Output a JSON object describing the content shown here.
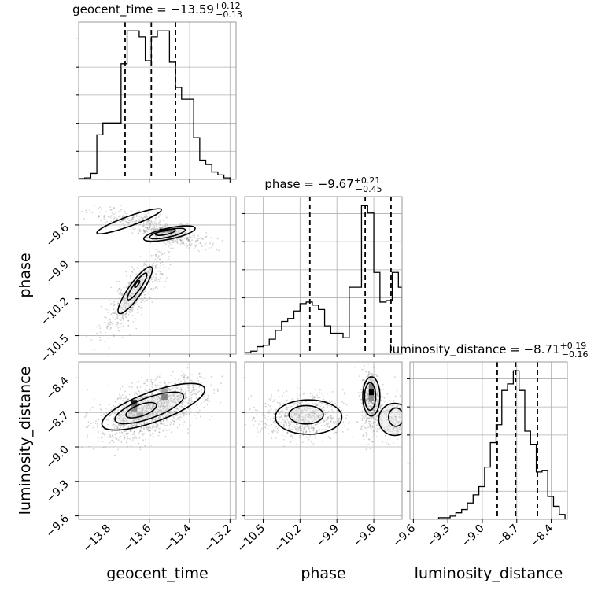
{
  "chart_data": {
    "type": "corner",
    "parameters": [
      {
        "name": "geocent_time",
        "axis_label": "geocent_time",
        "title_prefix": "geocent_time = ",
        "title_value": "−13.59",
        "title_sup": "+0.12",
        "title_sub": "−0.13",
        "median": -13.59,
        "q16": -13.72,
        "q84": -13.47,
        "range": [
          -13.95,
          -13.17
        ],
        "ticks": [
          -13.8,
          -13.6,
          -13.4,
          -13.2
        ],
        "tick_labels": [
          "−13.8",
          "−13.6",
          "−13.4",
          "−13.2"
        ]
      },
      {
        "name": "phase",
        "axis_label": "phase",
        "title_prefix": "phase = ",
        "title_value": "−9.67",
        "title_sup": "+0.21",
        "title_sub": "−0.45",
        "median": -9.67,
        "q16": -10.12,
        "q84": -9.46,
        "range": [
          -10.65,
          -9.37
        ],
        "ticks": [
          -10.5,
          -10.2,
          -9.9,
          -9.6
        ],
        "tick_labels": [
          "−10.5",
          "−10.2",
          "−9.9",
          "−9.6"
        ]
      },
      {
        "name": "luminosity_distance",
        "axis_label": "luminosity_distance",
        "title_prefix": "luminosity_distance = ",
        "title_value": "−8.71",
        "title_sup": "+0.19",
        "title_sub": "−0.16",
        "median": -8.71,
        "q16": -8.87,
        "q84": -8.52,
        "range": [
          -9.63,
          -8.26
        ],
        "ticks": [
          -9.6,
          -9.3,
          -9.0,
          -8.7,
          -8.4
        ],
        "tick_labels": [
          "−9.6",
          "−9.3",
          "−9.0",
          "−8.7",
          "−8.4"
        ]
      }
    ],
    "histograms": [
      {
        "param": 0,
        "edges": [
          -13.95,
          -13.92,
          -13.89,
          -13.86,
          -13.83,
          -13.8,
          -13.77,
          -13.74,
          -13.71,
          -13.68,
          -13.65,
          -13.62,
          -13.59,
          -13.56,
          -13.53,
          -13.5,
          -13.47,
          -13.44,
          -13.41,
          -13.38,
          -13.35,
          -13.32,
          -13.29,
          -13.26,
          -13.23,
          -13.2
        ],
        "counts": [
          0.5,
          1,
          4,
          30,
          38,
          38,
          38,
          78,
          100,
          100,
          96,
          80,
          96,
          100,
          100,
          79,
          62,
          54,
          54,
          28,
          13,
          10,
          5,
          3,
          1
        ]
      },
      {
        "param": 1,
        "edges": [
          -10.65,
          -10.6,
          -10.55,
          -10.5,
          -10.45,
          -10.4,
          -10.35,
          -10.3,
          -10.25,
          -10.2,
          -10.15,
          -10.1,
          -10.05,
          -10.0,
          -9.95,
          -9.9,
          -9.85,
          -9.8,
          -9.75,
          -9.7,
          -9.65,
          -9.6,
          -9.55,
          -9.5,
          -9.45,
          -9.4,
          -9.37
        ],
        "counts": [
          1,
          2,
          5,
          6,
          10,
          16,
          22,
          24,
          29,
          34,
          35,
          33,
          30,
          19,
          14,
          14,
          11,
          45,
          45,
          100,
          95,
          55,
          35,
          36,
          55,
          45
        ]
      },
      {
        "param": 2,
        "edges": [
          -9.63,
          -9.58,
          -9.53,
          -9.48,
          -9.43,
          -9.38,
          -9.33,
          -9.28,
          -9.23,
          -9.18,
          -9.13,
          -9.08,
          -9.03,
          -8.98,
          -8.93,
          -8.88,
          -8.83,
          -8.78,
          -8.73,
          -8.68,
          -8.63,
          -8.58,
          -8.53,
          -8.48,
          -8.43,
          -8.38,
          -8.33,
          -8.28
        ],
        "counts": [
          0,
          0,
          0,
          0,
          0,
          1,
          1,
          2,
          4,
          6,
          10,
          15,
          20,
          32,
          47,
          58,
          79,
          83,
          91,
          79,
          54,
          46,
          29,
          30,
          14,
          8,
          3
        ]
      }
    ],
    "pairs": [
      {
        "x_param": 0,
        "y_param": 1,
        "clusters": [
          {
            "mx": -13.5,
            "my": -9.68,
            "sx": 0.09,
            "sy": 0.05,
            "rho": -0.6,
            "n": 420
          },
          {
            "mx": -13.7,
            "my": -9.55,
            "sx": 0.1,
            "sy": 0.04,
            "rho": -0.5,
            "n": 200
          },
          {
            "mx": -13.67,
            "my": -10.15,
            "sx": 0.08,
            "sy": 0.17,
            "rho": 0.85,
            "n": 560
          }
        ],
        "dense_cells": [
          {
            "x": -13.55,
            "y": -9.66,
            "w": 0.03,
            "h": 0.03,
            "shade": 0.0
          },
          {
            "x": -13.52,
            "y": -9.66,
            "w": 0.03,
            "h": 0.03,
            "shade": 0.4
          },
          {
            "x": -13.58,
            "y": -9.66,
            "w": 0.03,
            "h": 0.03,
            "shade": 0.75
          }
        ],
        "contours": [
          {
            "cx": -13.5,
            "cy": -9.67,
            "rx": 0.13,
            "ry": 0.045,
            "angle": -12
          },
          {
            "cx": -13.51,
            "cy": -9.67,
            "rx": 0.09,
            "ry": 0.03,
            "angle": -12
          },
          {
            "cx": -13.52,
            "cy": -9.66,
            "rx": 0.05,
            "ry": 0.018,
            "angle": -12
          },
          {
            "cx": -13.7,
            "cy": -9.57,
            "rx": 0.17,
            "ry": 0.04,
            "angle": -20
          },
          {
            "cx": -13.67,
            "cy": -10.13,
            "rx": 0.14,
            "ry": 0.055,
            "angle": -55
          },
          {
            "cx": -13.66,
            "cy": -10.1,
            "rx": 0.08,
            "ry": 0.03,
            "angle": -55
          },
          {
            "cx": -13.66,
            "cy": -10.08,
            "rx": 0.02,
            "ry": 0.01,
            "angle": -55
          }
        ]
      },
      {
        "x_param": 0,
        "y_param": 2,
        "clusters": [
          {
            "mx": -13.6,
            "my": -8.68,
            "sx": 0.13,
            "sy": 0.13,
            "rho": 0.55,
            "n": 1500
          }
        ],
        "dense_cells": [
          {
            "x": -13.69,
            "y": -8.64,
            "w": 0.03,
            "h": 0.05,
            "shade": 0.1
          },
          {
            "x": -13.69,
            "y": -8.69,
            "w": 0.03,
            "h": 0.05,
            "shade": 0.35
          },
          {
            "x": -13.66,
            "y": -8.74,
            "w": 0.03,
            "h": 0.05,
            "shade": 0.6
          },
          {
            "x": -13.54,
            "y": -8.59,
            "w": 0.03,
            "h": 0.05,
            "shade": 0.3
          },
          {
            "x": -13.54,
            "y": -8.54,
            "w": 0.03,
            "h": 0.05,
            "shade": 0.65
          }
        ],
        "contours": [
          {
            "cx": -13.58,
            "cy": -8.65,
            "rx": 0.27,
            "ry": 0.13,
            "angle": -20
          },
          {
            "cx": -13.6,
            "cy": -8.66,
            "rx": 0.18,
            "ry": 0.09,
            "angle": -20
          },
          {
            "cx": -13.64,
            "cy": -8.68,
            "rx": 0.08,
            "ry": 0.05,
            "angle": -20
          }
        ]
      },
      {
        "x_param": 1,
        "y_param": 2,
        "clusters": [
          {
            "mx": -10.18,
            "my": -8.74,
            "sx": 0.17,
            "sy": 0.1,
            "rho": 0.0,
            "n": 700
          },
          {
            "mx": -9.62,
            "my": -8.6,
            "sx": 0.04,
            "sy": 0.14,
            "rho": 0.0,
            "n": 550
          },
          {
            "mx": -9.45,
            "my": -8.75,
            "sx": 0.06,
            "sy": 0.1,
            "rho": 0.0,
            "n": 200
          }
        ],
        "dense_cells": [
          {
            "x": -9.64,
            "y": -8.55,
            "w": 0.04,
            "h": 0.05,
            "shade": 0.0
          },
          {
            "x": -9.64,
            "y": -8.5,
            "w": 0.04,
            "h": 0.05,
            "shade": 0.5
          },
          {
            "x": -9.64,
            "y": -8.6,
            "w": 0.04,
            "h": 0.05,
            "shade": 0.55
          }
        ],
        "contours": [
          {
            "cx": -10.13,
            "cy": -8.74,
            "rx": 0.27,
            "ry": 0.15,
            "angle": 0
          },
          {
            "cx": -10.15,
            "cy": -8.72,
            "rx": 0.14,
            "ry": 0.08,
            "angle": 0
          },
          {
            "cx": -9.62,
            "cy": -8.56,
            "rx": 0.07,
            "ry": 0.17,
            "angle": 0
          },
          {
            "cx": -9.63,
            "cy": -8.56,
            "rx": 0.045,
            "ry": 0.12,
            "angle": 0
          },
          {
            "cx": -9.43,
            "cy": -8.76,
            "rx": 0.13,
            "ry": 0.14,
            "angle": 0
          },
          {
            "cx": -9.42,
            "cy": -8.74,
            "rx": 0.06,
            "ry": 0.08,
            "angle": 0
          }
        ]
      }
    ],
    "grid": true,
    "quantile_lines": "dashed",
    "colors": {
      "line": "#000000",
      "grid": "#b0b0b0",
      "spine": "#999999",
      "point": "#808080"
    }
  }
}
